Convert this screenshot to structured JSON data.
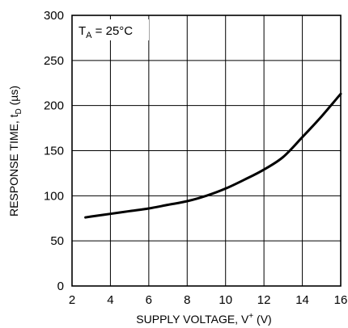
{
  "chart_data": {
    "type": "line",
    "xlabel": {
      "main": "SUPPLY VOLTAGE, V",
      "sup": "+",
      "unit": " (V)"
    },
    "ylabel": {
      "main": "RESPONSE TIME, t",
      "sub": "D",
      "unit": " (µs)"
    },
    "annotation": {
      "main": "T",
      "sub": "A",
      "rest": " = 25°C"
    },
    "xlim": [
      2,
      16
    ],
    "ylim": [
      0,
      300
    ],
    "x_ticks": [
      2,
      4,
      6,
      8,
      10,
      12,
      14,
      16
    ],
    "y_ticks": [
      0,
      50,
      100,
      150,
      200,
      250,
      300
    ],
    "grid": true,
    "series": [
      {
        "x": [
          2.7,
          3,
          4,
          5,
          6,
          7,
          8,
          9,
          10,
          11,
          12,
          13,
          14,
          15,
          16
        ],
        "y": [
          76,
          77,
          80,
          83,
          86,
          90,
          94,
          100,
          108,
          118,
          129,
          143,
          165,
          188,
          213
        ]
      }
    ]
  }
}
